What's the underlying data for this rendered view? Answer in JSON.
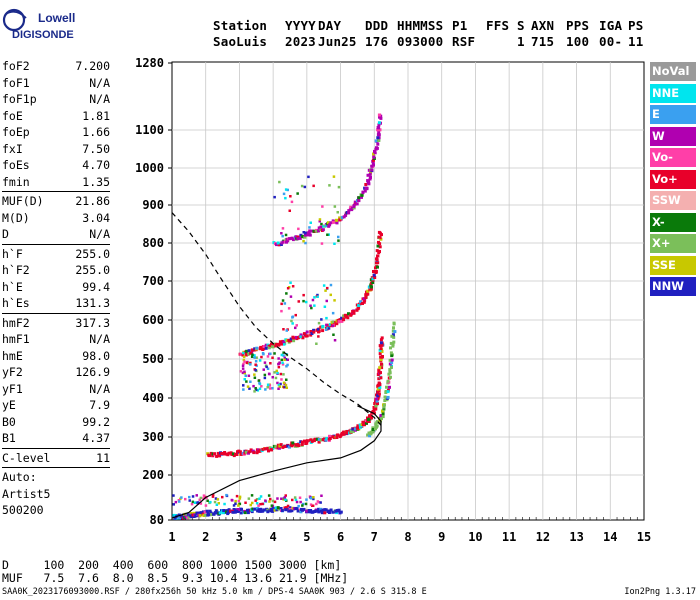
{
  "logo": {
    "line1": "Lowell",
    "line2": "DIGISONDE"
  },
  "header": {
    "row1": [
      "Station",
      "YYYY",
      "DAY",
      "DDD",
      "HHMMSS",
      "P1",
      "FFS",
      "S",
      "AXN",
      "PPS",
      "IGA",
      "PS"
    ],
    "row2": [
      "SaoLuis",
      "2023",
      "Jun25",
      "176",
      "093000",
      "RSF",
      "1",
      "715",
      "100",
      "00-",
      "11"
    ]
  },
  "params": {
    "group1": [
      {
        "name": "foF2",
        "value": "7.200"
      },
      {
        "name": "foF1",
        "value": "N/A"
      },
      {
        "name": "foF1p",
        "value": "N/A"
      },
      {
        "name": "foE",
        "value": "1.81"
      },
      {
        "name": "foEp",
        "value": "1.66"
      },
      {
        "name": "fxI",
        "value": "7.50"
      },
      {
        "name": "foEs",
        "value": "4.70"
      },
      {
        "name": "fmin",
        "value": "1.35"
      }
    ],
    "group2": [
      {
        "name": "MUF(D)",
        "value": "21.86"
      },
      {
        "name": "M(D)",
        "value": "3.04"
      },
      {
        "name": "D",
        "value": "N/A"
      }
    ],
    "group3": [
      {
        "name": "h`F",
        "value": "255.0"
      },
      {
        "name": "h`F2",
        "value": "255.0"
      },
      {
        "name": "h`E",
        "value": "99.4"
      },
      {
        "name": "h`Es",
        "value": "131.3"
      }
    ],
    "group4": [
      {
        "name": "hmF2",
        "value": "317.3"
      },
      {
        "name": "hmF1",
        "value": "N/A"
      },
      {
        "name": "hmE",
        "value": "98.0"
      },
      {
        "name": "yF2",
        "value": "126.9"
      },
      {
        "name": "yF1",
        "value": "N/A"
      },
      {
        "name": "yE",
        "value": "7.9"
      },
      {
        "name": "B0",
        "value": "99.2"
      },
      {
        "name": "B1",
        "value": "4.37"
      }
    ],
    "clevel": {
      "name": "C-level",
      "value": "11"
    },
    "auto": [
      "Auto:",
      "Artist5",
      "500200"
    ]
  },
  "legend": [
    {
      "label": "NoVal",
      "color": "#9a9a9a"
    },
    {
      "label": "NNE",
      "color": "#00e5ee"
    },
    {
      "label": "E",
      "color": "#3aa0f0"
    },
    {
      "label": "W",
      "color": "#b000b0"
    },
    {
      "label": "Vo-",
      "color": "#ff3fa8"
    },
    {
      "label": "Vo+",
      "color": "#e8002a"
    },
    {
      "label": "SSW",
      "color": "#f4b0b0"
    },
    {
      "label": "X-",
      "color": "#0a7a0a"
    },
    {
      "label": "X+",
      "color": "#7bbf5a"
    },
    {
      "label": "SSE",
      "color": "#c8c800"
    },
    {
      "label": "NNW",
      "color": "#2020c0"
    }
  ],
  "muf_table": {
    "d_row": "D     100  200  400  600  800 1000 1500 3000 [km]",
    "muf_row": "MUF   7.5  7.6  8.0  8.5  9.3 10.4 13.6 21.9 [MHz]"
  },
  "footer": {
    "left": "SAA0K_2023176093000.RSF / 280fx256h 50 kHz 5.0 km / DPS-4 SAA0K 903 / 2.6 S 315.8 E",
    "right": "Ion2Png 1.3.17"
  },
  "chart_data": {
    "type": "scatter",
    "title": "",
    "xlabel": "",
    "ylabel": "",
    "xlim": [
      1,
      15
    ],
    "ylim": [
      80,
      1280
    ],
    "x_ticks": [
      1,
      2,
      3,
      4,
      5,
      6,
      7,
      8,
      9,
      10,
      11,
      12,
      13,
      14,
      15
    ],
    "y_ticks": [
      80,
      200,
      300,
      400,
      500,
      600,
      700,
      800,
      900,
      1000,
      1100,
      1280
    ],
    "grid": true,
    "traces": [
      {
        "name": "O-trace F2",
        "color": "#e8002a",
        "x": [
          2.0,
          2.5,
          3.0,
          3.5,
          4.0,
          4.5,
          5.0,
          5.5,
          6.0,
          6.3,
          6.6,
          6.8,
          6.95,
          7.05,
          7.1,
          7.15,
          7.18
        ],
        "y": [
          258,
          258,
          262,
          268,
          276,
          283,
          290,
          298,
          310,
          320,
          335,
          350,
          370,
          400,
          440,
          500,
          560
        ]
      },
      {
        "name": "X-trace F2",
        "color": "#7bbf5a",
        "x": [
          6.8,
          7.0,
          7.2,
          7.35,
          7.45,
          7.55
        ],
        "y": [
          310,
          330,
          360,
          420,
          500,
          600
        ]
      },
      {
        "name": "2nd hop",
        "color": "#e8002a",
        "x": [
          3.0,
          3.5,
          4.0,
          4.5,
          5.0,
          5.5,
          6.0,
          6.4,
          6.7,
          6.9,
          7.05,
          7.15
        ],
        "y": [
          515,
          528,
          540,
          553,
          568,
          585,
          605,
          630,
          660,
          700,
          760,
          840
        ]
      },
      {
        "name": "3rd hop",
        "color": "#b000b0",
        "x": [
          4.0,
          4.5,
          5.0,
          5.5,
          6.0,
          6.4,
          6.7,
          6.9,
          7.05,
          7.15
        ],
        "y": [
          800,
          812,
          828,
          846,
          870,
          905,
          950,
          1010,
          1080,
          1150
        ]
      },
      {
        "name": "E layer",
        "color": "#2020c0",
        "x": [
          1.0,
          1.3,
          1.6,
          1.8,
          2.2,
          2.6,
          3.0,
          3.5,
          4.0,
          4.5,
          5.0,
          5.5,
          6.0
        ],
        "y": [
          92,
          94,
          97,
          100,
          104,
          106,
          108,
          110,
          112,
          112,
          110,
          108,
          106
        ]
      }
    ],
    "profile_solid": {
      "x": [
        1.0,
        1.5,
        2.0,
        3.0,
        4.0,
        5.0,
        6.0,
        6.6,
        7.0,
        7.2,
        7.2,
        7.0,
        6.5
      ],
      "y": [
        85,
        100,
        140,
        185,
        210,
        232,
        245,
        265,
        290,
        315,
        340,
        360,
        380
      ]
    },
    "profile_dashed": {
      "x": [
        1.0,
        1.5,
        2.0,
        2.5,
        3.0,
        3.5,
        4.0,
        4.5,
        5.0,
        5.5,
        6.0,
        6.5,
        7.0,
        7.2
      ],
      "y": [
        880,
        830,
        770,
        700,
        635,
        580,
        540,
        505,
        475,
        440,
        410,
        385,
        350,
        330
      ]
    }
  }
}
